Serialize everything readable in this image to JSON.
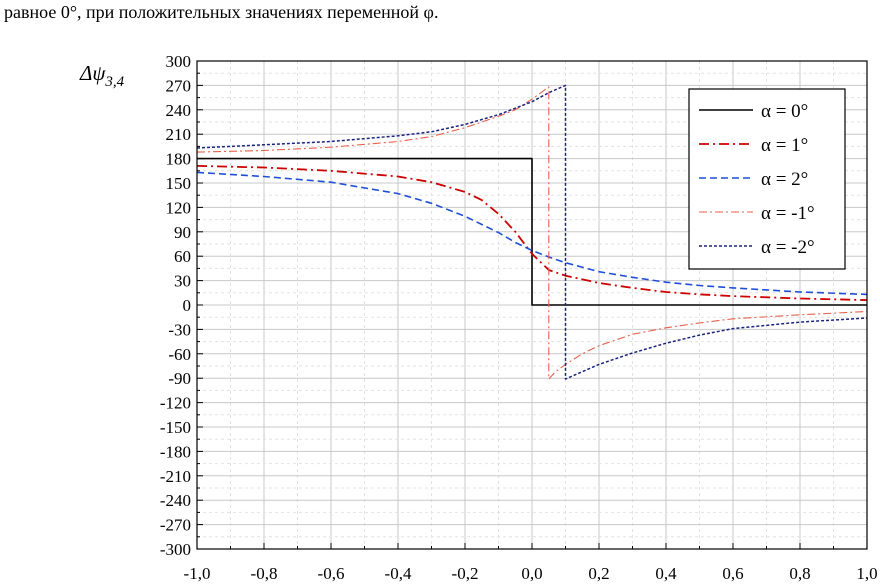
{
  "caption": "равное 0°, при положительных значениях переменной  φ.",
  "chart_data": {
    "type": "line",
    "title": "",
    "xlabel": "",
    "ylabel": {
      "main": "Δψ",
      "sub": "3,4"
    },
    "xlim": [
      -1.0,
      1.0
    ],
    "ylim": [
      -300,
      300
    ],
    "x_ticks": [
      "-1,0",
      "-0,8",
      "-0,6",
      "-0,4",
      "-0,2",
      "0,0",
      "0,2",
      "0,4",
      "0,6",
      "0,8",
      "1,0"
    ],
    "y_ticks": [
      "300",
      "270",
      "240",
      "210",
      "180",
      "150",
      "120",
      "90",
      "60",
      "30",
      "0",
      "-30",
      "-60",
      "-90",
      "-120",
      "-150",
      "-180",
      "-210",
      "-240",
      "-270",
      "-300"
    ],
    "grid": true,
    "legend_position": "top-right",
    "series": [
      {
        "name": "α = 0°",
        "color": "#000000",
        "dash": "solid",
        "x": [
          -1.0,
          -0.5,
          0.0,
          0.0,
          0.5,
          1.0
        ],
        "y": [
          180,
          180,
          180,
          0,
          0,
          0
        ]
      },
      {
        "name": "α = 1°",
        "color": "#cc0000",
        "dash": "dashdot",
        "x": [
          -1.0,
          -0.8,
          -0.6,
          -0.4,
          -0.3,
          -0.2,
          -0.15,
          -0.1,
          -0.05,
          0.0,
          0.05,
          0.1,
          0.2,
          0.3,
          0.4,
          0.5,
          0.6,
          0.8,
          1.0
        ],
        "y": [
          171,
          169,
          165,
          158,
          151,
          139,
          129,
          112,
          90,
          63,
          43,
          36,
          27,
          21,
          16,
          13,
          11,
          8,
          6
        ]
      },
      {
        "name": "α = 2°",
        "color": "#1f4fd8",
        "dash": "dash",
        "x": [
          -1.0,
          -0.8,
          -0.6,
          -0.4,
          -0.3,
          -0.2,
          -0.1,
          -0.05,
          0.0,
          0.05,
          0.1,
          0.2,
          0.3,
          0.4,
          0.5,
          0.6,
          0.8,
          1.0
        ],
        "y": [
          163,
          158,
          151,
          137,
          125,
          109,
          89,
          77,
          67,
          59,
          52,
          41,
          34,
          28,
          24,
          21,
          16,
          13
        ]
      },
      {
        "name": "α = -1°",
        "color": "#e8604c",
        "dash": "dashdotthin",
        "x": [
          -1.0,
          -0.8,
          -0.6,
          -0.4,
          -0.3,
          -0.2,
          -0.1,
          -0.05,
          0.0,
          0.03,
          0.05,
          0.05,
          0.07,
          0.1,
          0.15,
          0.2,
          0.3,
          0.4,
          0.5,
          0.6,
          0.8,
          1.0
        ],
        "y": [
          188,
          190,
          194,
          201,
          207,
          218,
          232,
          240,
          253,
          262,
          268,
          -91,
          -82,
          -73,
          -60,
          -50,
          -36,
          -28,
          -22,
          -17,
          -12,
          -8
        ]
      },
      {
        "name": "α = -2°",
        "color": "#1a237e",
        "dash": "dot",
        "x": [
          -1.0,
          -0.8,
          -0.6,
          -0.4,
          -0.3,
          -0.2,
          -0.1,
          -0.05,
          0.0,
          0.05,
          0.1,
          0.1,
          0.15,
          0.2,
          0.3,
          0.4,
          0.5,
          0.6,
          0.8,
          1.0
        ],
        "y": [
          193,
          197,
          201,
          208,
          213,
          222,
          234,
          242,
          250,
          261,
          270,
          -91,
          -82,
          -73,
          -59,
          -47,
          -37,
          -29,
          -21,
          -16
        ]
      }
    ]
  }
}
